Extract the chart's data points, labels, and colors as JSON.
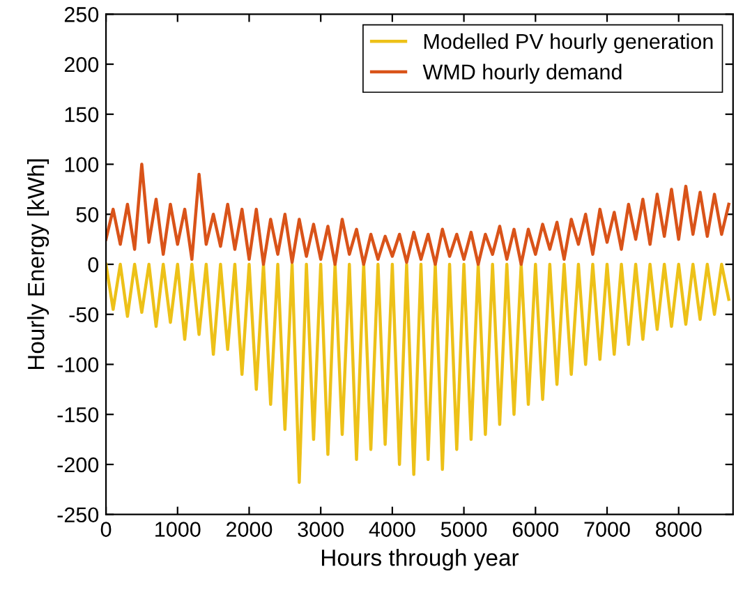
{
  "chart_data": {
    "type": "line",
    "xlabel": "Hours through year",
    "ylabel": "Hourly Energy [kWh]",
    "x": [
      0,
      100,
      200,
      300,
      400,
      500,
      600,
      700,
      800,
      900,
      1000,
      1100,
      1200,
      1300,
      1400,
      1500,
      1600,
      1700,
      1800,
      1900,
      2000,
      2100,
      2200,
      2300,
      2400,
      2500,
      2600,
      2700,
      2800,
      2900,
      3000,
      3100,
      3200,
      3300,
      3400,
      3500,
      3600,
      3700,
      3800,
      3900,
      4000,
      4100,
      4200,
      4300,
      4400,
      4500,
      4600,
      4700,
      4800,
      4900,
      5000,
      5100,
      5200,
      5300,
      5400,
      5500,
      5600,
      5700,
      5800,
      5900,
      6000,
      6100,
      6200,
      6300,
      6400,
      6500,
      6600,
      6700,
      6800,
      6900,
      7000,
      7100,
      7200,
      7300,
      7400,
      7500,
      7600,
      7700,
      7800,
      7900,
      8000,
      8100,
      8200,
      8300,
      8400,
      8500,
      8600,
      8700
    ],
    "series": [
      {
        "name": "Modelled PV hourly generation",
        "color": "#edc118",
        "values": [
          0,
          -45,
          0,
          -52,
          0,
          -48,
          0,
          -62,
          0,
          -58,
          0,
          -75,
          0,
          -70,
          0,
          -90,
          0,
          -85,
          0,
          -110,
          0,
          -125,
          0,
          -140,
          0,
          -165,
          0,
          -218,
          0,
          -175,
          0,
          -190,
          0,
          -170,
          0,
          -195,
          0,
          -185,
          0,
          -180,
          0,
          -200,
          0,
          -210,
          0,
          -195,
          0,
          -205,
          0,
          -185,
          0,
          -175,
          0,
          -170,
          0,
          -160,
          0,
          -150,
          0,
          -140,
          0,
          -135,
          0,
          -120,
          0,
          -110,
          0,
          -100,
          0,
          -95,
          0,
          -90,
          0,
          -80,
          0,
          -75,
          0,
          -65,
          0,
          -62,
          0,
          -60,
          0,
          -55,
          0,
          -50,
          0,
          -35
        ]
      },
      {
        "name": "WMD hourly demand",
        "color": "#d95319",
        "values": [
          25,
          55,
          20,
          60,
          15,
          100,
          22,
          65,
          10,
          60,
          20,
          55,
          5,
          90,
          20,
          50,
          18,
          60,
          15,
          55,
          5,
          55,
          0,
          45,
          10,
          50,
          2,
          45,
          8,
          40,
          5,
          38,
          0,
          45,
          10,
          35,
          0,
          30,
          5,
          28,
          8,
          30,
          2,
          32,
          5,
          30,
          0,
          35,
          8,
          30,
          5,
          32,
          0,
          30,
          10,
          38,
          5,
          35,
          0,
          35,
          10,
          40,
          15,
          42,
          5,
          45,
          20,
          50,
          10,
          55,
          22,
          52,
          15,
          60,
          25,
          65,
          20,
          70,
          28,
          75,
          25,
          78,
          30,
          72,
          28,
          70,
          30,
          60
        ]
      }
    ],
    "xlim": [
      0,
      8760
    ],
    "xticks": [
      0,
      1000,
      2000,
      3000,
      4000,
      5000,
      6000,
      7000,
      8000
    ],
    "ylim": [
      -250,
      250
    ],
    "yticks": [
      -250,
      -200,
      -150,
      -100,
      -50,
      0,
      50,
      100,
      150,
      200,
      250
    ],
    "legend": "top right",
    "grid": false,
    "marker": "none",
    "line_style": "solid"
  }
}
